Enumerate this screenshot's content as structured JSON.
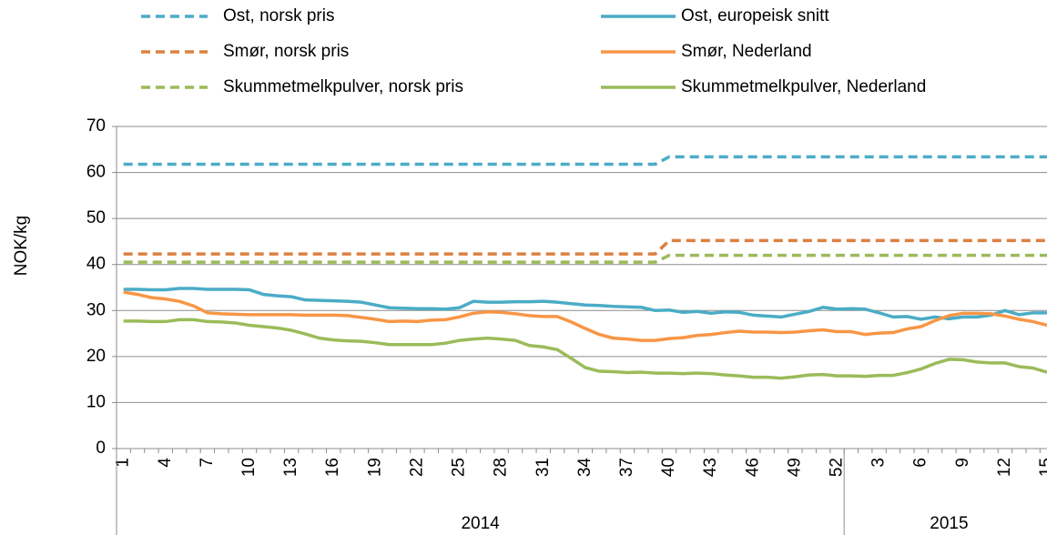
{
  "chart_data": {
    "type": "line",
    "ylabel": "NOK/kg",
    "categories": [
      "1",
      null,
      null,
      "4",
      null,
      null,
      "7",
      null,
      null,
      "10",
      null,
      null,
      "13",
      null,
      null,
      "16",
      null,
      null,
      "19",
      null,
      null,
      "22",
      null,
      null,
      "25",
      null,
      null,
      "28",
      null,
      null,
      "31",
      null,
      null,
      "34",
      null,
      null,
      "37",
      null,
      null,
      "40",
      null,
      null,
      "43",
      null,
      null,
      "46",
      null,
      null,
      "49",
      null,
      null,
      "52",
      null,
      null,
      "3",
      null,
      null,
      "6",
      null,
      null,
      "9",
      null,
      null,
      "12",
      null,
      null,
      "15"
    ],
    "category_groups": [
      {
        "name": "2014",
        "size": 52
      },
      {
        "name": "2015",
        "size": 15
      }
    ],
    "ylim": [
      0,
      70
    ],
    "yticks": [
      0,
      10,
      20,
      30,
      40,
      50,
      60,
      70
    ],
    "grid": true,
    "series": [
      {
        "name": "Ost, norsk pris",
        "color": "#4bacc6",
        "dashed": true,
        "values": [
          61.8,
          61.8,
          61.8,
          61.8,
          61.8,
          61.8,
          61.8,
          61.8,
          61.8,
          61.8,
          61.8,
          61.8,
          61.8,
          61.8,
          61.8,
          61.8,
          61.8,
          61.8,
          61.8,
          61.8,
          61.8,
          61.8,
          61.8,
          61.8,
          61.8,
          61.8,
          61.8,
          61.8,
          61.8,
          61.8,
          61.8,
          61.8,
          61.8,
          61.8,
          61.8,
          61.8,
          61.8,
          61.8,
          61.8,
          63.4,
          63.4,
          63.4,
          63.4,
          63.4,
          63.4,
          63.4,
          63.4,
          63.4,
          63.4,
          63.4,
          63.4,
          63.4,
          63.4,
          63.4,
          63.4,
          63.4,
          63.4,
          63.4,
          63.4,
          63.4,
          63.4,
          63.4,
          63.4,
          63.4,
          63.4,
          63.4,
          63.4
        ]
      },
      {
        "name": "Ost, europeisk snitt",
        "color": "#4bacc6",
        "dashed": false,
        "values": [
          34.6,
          34.6,
          34.5,
          34.5,
          34.8,
          34.8,
          34.6,
          34.6,
          34.6,
          34.5,
          33.5,
          33.2,
          33.0,
          32.3,
          32.2,
          32.1,
          32.0,
          31.8,
          31.2,
          30.6,
          30.5,
          30.4,
          30.4,
          30.3,
          30.6,
          32.0,
          31.8,
          31.8,
          31.9,
          31.9,
          32.0,
          31.8,
          31.5,
          31.2,
          31.1,
          30.9,
          30.8,
          30.7,
          30.0,
          30.1,
          29.6,
          29.8,
          29.4,
          29.7,
          29.6,
          29.0,
          28.8,
          28.6,
          29.2,
          29.8,
          30.7,
          30.3,
          30.4,
          30.3,
          29.5,
          28.6,
          28.7,
          28.1,
          28.6,
          28.2,
          28.6,
          28.6,
          29.0,
          30.0,
          29.1,
          29.5,
          29.5
        ]
      },
      {
        "name": "Smør, norsk pris",
        "color": "#dc8040",
        "dashed": true,
        "values": [
          42.3,
          42.3,
          42.3,
          42.3,
          42.3,
          42.3,
          42.3,
          42.3,
          42.3,
          42.3,
          42.3,
          42.3,
          42.3,
          42.3,
          42.3,
          42.3,
          42.3,
          42.3,
          42.3,
          42.3,
          42.3,
          42.3,
          42.3,
          42.3,
          42.3,
          42.3,
          42.3,
          42.3,
          42.3,
          42.3,
          42.3,
          42.3,
          42.3,
          42.3,
          42.3,
          42.3,
          42.3,
          42.3,
          42.3,
          45.2,
          45.2,
          45.2,
          45.2,
          45.2,
          45.2,
          45.2,
          45.2,
          45.2,
          45.2,
          45.2,
          45.2,
          45.2,
          45.2,
          45.2,
          45.2,
          45.2,
          45.2,
          45.2,
          45.2,
          45.2,
          45.2,
          45.2,
          45.2,
          45.2,
          45.2,
          45.2,
          45.2
        ]
      },
      {
        "name": "Smør, Nederland",
        "color": "#f79646",
        "dashed": false,
        "values": [
          34.0,
          33.5,
          32.8,
          32.5,
          32.0,
          31.0,
          29.5,
          29.3,
          29.2,
          29.1,
          29.1,
          29.1,
          29.1,
          29.0,
          29.0,
          29.0,
          28.9,
          28.5,
          28.1,
          27.6,
          27.7,
          27.6,
          27.9,
          28.0,
          28.6,
          29.4,
          29.7,
          29.6,
          29.3,
          28.9,
          28.7,
          28.7,
          27.5,
          26.1,
          24.8,
          24.0,
          23.8,
          23.5,
          23.5,
          23.9,
          24.1,
          24.6,
          24.8,
          25.2,
          25.5,
          25.3,
          25.3,
          25.2,
          25.3,
          25.6,
          25.8,
          25.4,
          25.4,
          24.8,
          25.1,
          25.2,
          26.0,
          26.5,
          27.8,
          28.9,
          29.4,
          29.4,
          29.3,
          28.8,
          28.1,
          27.6,
          26.8
        ]
      },
      {
        "name": "Skummetmelkpulver, norsk pris",
        "color": "#9bbb59",
        "dashed": true,
        "values": [
          40.5,
          40.5,
          40.5,
          40.5,
          40.5,
          40.5,
          40.5,
          40.5,
          40.5,
          40.5,
          40.5,
          40.5,
          40.5,
          40.5,
          40.5,
          40.5,
          40.5,
          40.5,
          40.5,
          40.5,
          40.5,
          40.5,
          40.5,
          40.5,
          40.5,
          40.5,
          40.5,
          40.5,
          40.5,
          40.5,
          40.5,
          40.5,
          40.5,
          40.5,
          40.5,
          40.5,
          40.5,
          40.5,
          40.5,
          42.0,
          42.0,
          42.0,
          42.0,
          42.0,
          42.0,
          42.0,
          42.0,
          42.0,
          42.0,
          42.0,
          42.0,
          42.0,
          42.0,
          42.0,
          42.0,
          42.0,
          42.0,
          42.0,
          42.0,
          42.0,
          42.0,
          42.0,
          42.0,
          42.0,
          42.0,
          42.0,
          42.0
        ]
      },
      {
        "name": "Skummetmelkpulver, Nederland",
        "color": "#9bbb59",
        "dashed": false,
        "values": [
          27.7,
          27.7,
          27.6,
          27.6,
          28.0,
          28.0,
          27.6,
          27.5,
          27.3,
          26.8,
          26.5,
          26.2,
          25.7,
          24.9,
          24.0,
          23.6,
          23.4,
          23.3,
          23.0,
          22.6,
          22.6,
          22.6,
          22.6,
          22.9,
          23.5,
          23.8,
          24.0,
          23.8,
          23.5,
          22.4,
          22.1,
          21.5,
          19.6,
          17.6,
          16.8,
          16.7,
          16.5,
          16.6,
          16.4,
          16.4,
          16.3,
          16.4,
          16.3,
          16.0,
          15.8,
          15.5,
          15.5,
          15.3,
          15.6,
          16.0,
          16.1,
          15.8,
          15.8,
          15.7,
          15.9,
          15.9,
          16.5,
          17.3,
          18.5,
          19.4,
          19.3,
          18.8,
          18.6,
          18.6,
          17.8,
          17.5,
          16.6
        ]
      }
    ]
  }
}
